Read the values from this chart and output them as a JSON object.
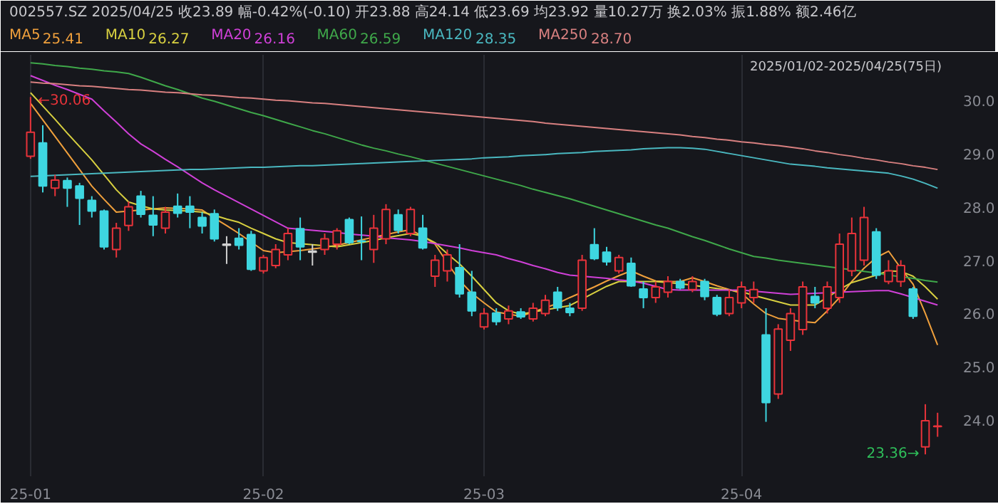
{
  "chart_data": {
    "type": "candlestick",
    "title": "002557.SZ  2025/04/25  收23.89  幅-0.42%(-0.10)  开23.88  高24.14  低23.69  均23.92  量10.27万  换2.03%  振1.88%  额2.46亿",
    "categories": [
      "25-01",
      null,
      null,
      null,
      null,
      null,
      null,
      null,
      null,
      null,
      null,
      null,
      null,
      null,
      null,
      null,
      null,
      null,
      null,
      "25-02",
      null,
      null,
      null,
      null,
      null,
      null,
      null,
      null,
      null,
      null,
      null,
      null,
      null,
      null,
      null,
      null,
      null,
      "25-03",
      null,
      null,
      null,
      null,
      null,
      null,
      null,
      null,
      null,
      null,
      null,
      null,
      null,
      null,
      null,
      null,
      null,
      null,
      null,
      null,
      "25-04",
      null,
      null,
      null,
      null,
      null,
      null,
      null,
      null,
      null,
      null,
      null,
      null,
      null,
      null,
      null,
      null
    ],
    "ohlc": [
      [
        28.95,
        30.06,
        28.9,
        29.4
      ],
      [
        29.2,
        29.53,
        28.27,
        28.39
      ],
      [
        28.35,
        28.6,
        28.2,
        28.5
      ],
      [
        28.49,
        28.55,
        28.0,
        28.35
      ],
      [
        28.39,
        28.45,
        27.66,
        28.16
      ],
      [
        28.12,
        28.2,
        27.8,
        27.92
      ],
      [
        27.92,
        27.95,
        27.2,
        27.25
      ],
      [
        27.2,
        27.7,
        27.05,
        27.6
      ],
      [
        27.65,
        28.1,
        27.55,
        28.0
      ],
      [
        28.2,
        28.3,
        27.8,
        27.86
      ],
      [
        27.84,
        28.2,
        27.45,
        27.66
      ],
      [
        27.6,
        28.0,
        27.5,
        27.9
      ],
      [
        28.01,
        28.25,
        27.8,
        27.88
      ],
      [
        28.01,
        28.2,
        27.6,
        27.9
      ],
      [
        27.8,
        27.9,
        27.5,
        27.64
      ],
      [
        27.87,
        27.95,
        27.35,
        27.4
      ],
      [
        27.3,
        27.45,
        26.93,
        27.28
      ],
      [
        27.41,
        27.6,
        27.2,
        27.28
      ],
      [
        27.48,
        27.55,
        26.8,
        26.83
      ],
      [
        26.8,
        27.1,
        26.75,
        27.05
      ],
      [
        26.9,
        27.3,
        26.85,
        27.2
      ],
      [
        27.1,
        27.6,
        27.0,
        27.5
      ],
      [
        27.59,
        27.8,
        27.0,
        27.25
      ],
      [
        27.15,
        27.3,
        26.9,
        27.17
      ],
      [
        27.2,
        27.5,
        27.1,
        27.4
      ],
      [
        27.3,
        27.6,
        27.2,
        27.55
      ],
      [
        27.76,
        27.8,
        27.3,
        27.33
      ],
      [
        27.36,
        27.82,
        27.0,
        27.35
      ],
      [
        27.2,
        27.85,
        26.95,
        27.6
      ],
      [
        27.4,
        28.05,
        27.3,
        27.95
      ],
      [
        27.85,
        27.95,
        27.5,
        27.56
      ],
      [
        27.5,
        28.0,
        27.45,
        27.95
      ],
      [
        27.6,
        27.85,
        27.2,
        27.23
      ],
      [
        26.7,
        27.1,
        26.5,
        27.0
      ],
      [
        26.8,
        27.2,
        26.6,
        27.1
      ],
      [
        26.86,
        27.3,
        26.3,
        26.37
      ],
      [
        26.4,
        26.8,
        25.95,
        26.05
      ],
      [
        25.75,
        26.1,
        25.7,
        26.0
      ],
      [
        26.01,
        26.1,
        25.78,
        25.85
      ],
      [
        25.9,
        26.15,
        25.8,
        26.05
      ],
      [
        26.03,
        26.1,
        25.9,
        25.94
      ],
      [
        25.9,
        26.2,
        25.85,
        26.1
      ],
      [
        26.0,
        26.35,
        25.95,
        26.25
      ],
      [
        26.4,
        26.5,
        26.05,
        26.11
      ],
      [
        26.1,
        26.2,
        25.95,
        26.02
      ],
      [
        26.1,
        27.1,
        26.05,
        27.0
      ],
      [
        27.29,
        27.6,
        27.0,
        27.03
      ],
      [
        27.15,
        27.25,
        26.9,
        26.97
      ],
      [
        26.8,
        27.1,
        26.75,
        27.05
      ],
      [
        26.94,
        27.05,
        26.5,
        26.52
      ],
      [
        26.46,
        26.6,
        26.1,
        26.3
      ],
      [
        26.3,
        26.6,
        26.2,
        26.5
      ],
      [
        26.4,
        26.7,
        26.3,
        26.6
      ],
      [
        26.6,
        26.65,
        26.45,
        26.48
      ],
      [
        26.45,
        26.7,
        26.4,
        26.6
      ],
      [
        26.6,
        26.65,
        26.25,
        26.32
      ],
      [
        26.3,
        26.35,
        25.95,
        25.99
      ],
      [
        26.0,
        26.45,
        25.95,
        26.3
      ],
      [
        26.2,
        26.6,
        26.1,
        26.5
      ],
      [
        26.3,
        26.6,
        26.2,
        26.45
      ],
      [
        25.6,
        26.1,
        23.97,
        24.33
      ],
      [
        24.49,
        25.8,
        24.4,
        25.71
      ],
      [
        25.5,
        26.1,
        25.3,
        26.0
      ],
      [
        25.7,
        26.6,
        25.6,
        26.5
      ],
      [
        26.32,
        26.5,
        26.1,
        26.2
      ],
      [
        26.1,
        26.6,
        26.0,
        26.5
      ],
      [
        26.3,
        27.5,
        26.2,
        27.3
      ],
      [
        26.8,
        27.8,
        26.7,
        27.5
      ],
      [
        27.0,
        28.0,
        26.9,
        27.8
      ],
      [
        27.53,
        27.6,
        26.65,
        26.72
      ],
      [
        26.6,
        27.0,
        26.55,
        26.8
      ],
      [
        26.6,
        27.0,
        26.5,
        26.9
      ],
      [
        26.46,
        26.5,
        25.9,
        25.95
      ],
      [
        23.5,
        24.3,
        23.36,
        23.99
      ],
      [
        23.88,
        24.14,
        23.69,
        23.89
      ]
    ],
    "colors": [
      "#e8333a",
      "#3ed6e0",
      "#e8333a",
      "#3ed6e0",
      "#3ed6e0",
      "#3ed6e0",
      "#3ed6e0",
      "#e8333a",
      "#e8333a",
      "#3ed6e0",
      "#3ed6e0",
      "#e8333a",
      "#3ed6e0",
      "#3ed6e0",
      "#3ed6e0",
      "#3ed6e0",
      "#d0d0d0",
      "#3ed6e0",
      "#3ed6e0",
      "#e8333a",
      "#e8333a",
      "#e8333a",
      "#3ed6e0",
      "#d0d0d0",
      "#e8333a",
      "#e8333a",
      "#3ed6e0",
      "#3ed6e0",
      "#e8333a",
      "#e8333a",
      "#3ed6e0",
      "#e8333a",
      "#3ed6e0",
      "#e8333a",
      "#e8333a",
      "#3ed6e0",
      "#3ed6e0",
      "#e8333a",
      "#3ed6e0",
      "#e8333a",
      "#3ed6e0",
      "#e8333a",
      "#e8333a",
      "#3ed6e0",
      "#3ed6e0",
      "#e8333a",
      "#3ed6e0",
      "#3ed6e0",
      "#e8333a",
      "#3ed6e0",
      "#3ed6e0",
      "#e8333a",
      "#e8333a",
      "#3ed6e0",
      "#e8333a",
      "#3ed6e0",
      "#3ed6e0",
      "#e8333a",
      "#e8333a",
      "#e8333a",
      "#3ed6e0",
      "#e8333a",
      "#e8333a",
      "#e8333a",
      "#3ed6e0",
      "#e8333a",
      "#e8333a",
      "#e8333a",
      "#e8333a",
      "#3ed6e0",
      "#e8333a",
      "#e8333a",
      "#3ed6e0",
      "#e8333a",
      "#e8333a"
    ],
    "series": [
      {
        "name": "MA5",
        "type": "line",
        "color": "#f0a03c",
        "values": [
          29.94,
          29.63,
          29.32,
          29.01,
          28.7,
          28.39,
          28.14,
          27.9,
          27.92,
          27.94,
          27.96,
          27.98,
          27.97,
          27.96,
          27.94,
          27.79,
          27.65,
          27.5,
          27.34,
          27.18,
          27.14,
          27.16,
          27.18,
          27.21,
          27.24,
          27.28,
          27.33,
          27.38,
          27.43,
          27.48,
          27.53,
          27.57,
          27.45,
          27.3,
          26.95,
          26.62,
          26.38,
          26.2,
          26.03,
          25.99,
          25.95,
          26.03,
          26.11,
          26.19,
          26.3,
          26.4,
          26.5,
          26.61,
          26.71,
          26.8,
          26.7,
          26.61,
          26.6,
          26.6,
          26.67,
          26.6,
          26.52,
          26.45,
          26.38,
          26.18,
          26.0,
          25.91,
          25.88,
          25.85,
          25.83,
          26.05,
          26.3,
          26.6,
          26.85,
          27.05,
          27.17,
          26.85,
          26.55,
          26.0,
          25.41
        ]
      },
      {
        "name": "MA10",
        "type": "line",
        "color": "#d8d040",
        "values": [
          30.14,
          29.89,
          29.64,
          29.38,
          29.13,
          28.88,
          28.6,
          28.32,
          28.09,
          28.02,
          27.96,
          27.94,
          27.93,
          27.92,
          27.9,
          27.84,
          27.77,
          27.71,
          27.6,
          27.5,
          27.4,
          27.33,
          27.31,
          27.29,
          27.27,
          27.25,
          27.29,
          27.33,
          27.37,
          27.42,
          27.46,
          27.5,
          27.45,
          27.33,
          27.12,
          26.93,
          26.7,
          26.45,
          26.2,
          26.05,
          25.99,
          26.03,
          26.07,
          26.11,
          26.15,
          26.27,
          26.39,
          26.51,
          26.6,
          26.6,
          26.6,
          26.6,
          26.58,
          26.56,
          26.53,
          26.5,
          26.47,
          26.44,
          26.41,
          26.34,
          26.28,
          26.22,
          26.16,
          26.16,
          26.16,
          26.3,
          26.45,
          26.58,
          26.65,
          26.72,
          26.8,
          26.79,
          26.7,
          26.5,
          26.27
        ]
      },
      {
        "name": "MA20",
        "type": "line",
        "color": "#d040d8",
        "values": [
          30.46,
          30.37,
          30.28,
          30.2,
          30.11,
          30.02,
          29.8,
          29.59,
          29.37,
          29.18,
          29.04,
          28.89,
          28.75,
          28.6,
          28.45,
          28.32,
          28.2,
          28.08,
          27.96,
          27.84,
          27.72,
          27.6,
          27.58,
          27.56,
          27.54,
          27.52,
          27.49,
          27.47,
          27.45,
          27.42,
          27.4,
          27.38,
          27.35,
          27.31,
          27.27,
          27.23,
          27.18,
          27.14,
          27.1,
          27.03,
          26.97,
          26.9,
          26.84,
          26.77,
          26.72,
          26.7,
          26.68,
          26.66,
          26.63,
          26.61,
          26.57,
          26.51,
          26.45,
          26.44,
          26.44,
          26.44,
          26.44,
          26.44,
          26.44,
          26.42,
          26.4,
          26.38,
          26.36,
          26.37,
          26.38,
          26.39,
          26.4,
          26.41,
          26.42,
          26.43,
          26.43,
          26.37,
          26.3,
          26.23,
          26.16
        ]
      },
      {
        "name": "MA60",
        "type": "line",
        "color": "#3fa84a",
        "values": [
          30.7,
          30.68,
          30.65,
          30.63,
          30.6,
          30.58,
          30.55,
          30.53,
          30.5,
          30.43,
          30.35,
          30.27,
          30.2,
          30.12,
          30.04,
          29.98,
          29.91,
          29.84,
          29.77,
          29.71,
          29.64,
          29.57,
          29.5,
          29.43,
          29.37,
          29.3,
          29.23,
          29.16,
          29.1,
          29.05,
          28.99,
          28.94,
          28.88,
          28.82,
          28.76,
          28.7,
          28.64,
          28.58,
          28.52,
          28.46,
          28.4,
          28.33,
          28.27,
          28.21,
          28.15,
          28.08,
          28.01,
          27.94,
          27.87,
          27.8,
          27.73,
          27.66,
          27.6,
          27.52,
          27.44,
          27.37,
          27.29,
          27.21,
          27.14,
          27.07,
          27.04,
          27.0,
          26.97,
          26.94,
          26.91,
          26.88,
          26.85,
          26.82,
          26.79,
          26.76,
          26.72,
          26.69,
          26.66,
          26.62,
          26.59
        ]
      },
      {
        "name": "MA120",
        "type": "line",
        "color": "#4ab8c0",
        "values": [
          28.57,
          28.58,
          28.59,
          28.6,
          28.61,
          28.62,
          28.63,
          28.64,
          28.65,
          28.66,
          28.67,
          28.68,
          28.69,
          28.7,
          28.7,
          28.71,
          28.72,
          28.73,
          28.74,
          28.74,
          28.75,
          28.76,
          28.77,
          28.77,
          28.78,
          28.79,
          28.8,
          28.81,
          28.82,
          28.83,
          28.84,
          28.85,
          28.86,
          28.87,
          28.88,
          28.89,
          28.9,
          28.92,
          28.93,
          28.94,
          28.96,
          28.97,
          28.98,
          29.0,
          29.01,
          29.02,
          29.04,
          29.05,
          29.06,
          29.07,
          29.09,
          29.1,
          29.11,
          29.11,
          29.1,
          29.08,
          29.04,
          29.0,
          28.96,
          28.92,
          28.88,
          28.84,
          28.8,
          28.78,
          28.76,
          28.73,
          28.71,
          28.69,
          28.67,
          28.65,
          28.63,
          28.58,
          28.52,
          28.44,
          28.35
        ]
      },
      {
        "name": "MA250",
        "type": "line",
        "color": "#d88080",
        "values": [
          30.34,
          30.32,
          30.31,
          30.29,
          30.27,
          30.26,
          30.24,
          30.22,
          30.2,
          30.19,
          30.17,
          30.15,
          30.14,
          30.12,
          30.1,
          30.09,
          30.07,
          30.05,
          30.04,
          30.02,
          30.0,
          29.99,
          29.97,
          29.95,
          29.94,
          29.92,
          29.9,
          29.88,
          29.86,
          29.84,
          29.82,
          29.8,
          29.78,
          29.76,
          29.74,
          29.72,
          29.7,
          29.68,
          29.66,
          29.64,
          29.62,
          29.6,
          29.57,
          29.55,
          29.53,
          29.51,
          29.49,
          29.47,
          29.45,
          29.43,
          29.41,
          29.39,
          29.37,
          29.35,
          29.32,
          29.3,
          29.27,
          29.25,
          29.22,
          29.2,
          29.17,
          29.15,
          29.12,
          29.09,
          29.05,
          29.02,
          28.98,
          28.95,
          28.91,
          28.88,
          28.84,
          28.81,
          28.77,
          28.74,
          28.7
        ]
      }
    ],
    "ylim": [
      22.95,
      30.85
    ],
    "yticks": [
      {
        "value": 24,
        "label": "24.0"
      },
      {
        "value": 25,
        "label": "25.0"
      },
      {
        "value": 26,
        "label": "26.0"
      },
      {
        "value": 27,
        "label": "27.0"
      },
      {
        "value": 28,
        "label": "28.0"
      },
      {
        "value": 29,
        "label": "29.0"
      },
      {
        "value": 30,
        "label": "30.0"
      }
    ],
    "grid": "x",
    "annotations": [
      "2025/01/02-2025/04/25(75日)",
      "←30.06",
      "23.36→",
      "25.41",
      "26.27",
      "26.16",
      "26.59",
      "28.35",
      "28.70"
    ]
  }
}
